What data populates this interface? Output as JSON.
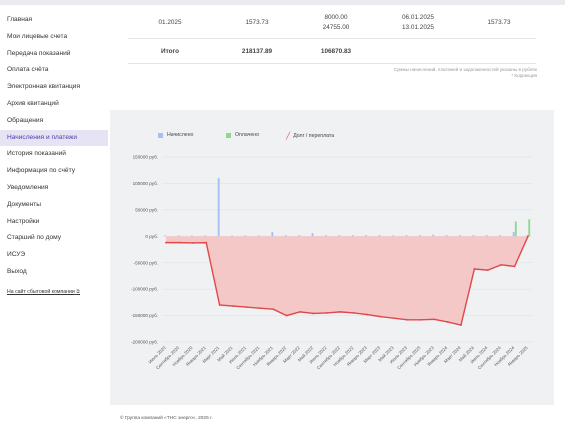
{
  "sidebar": {
    "items": [
      {
        "label": "Главная"
      },
      {
        "label": "Мои лицевые счета"
      },
      {
        "label": "Передача показаний"
      },
      {
        "label": "Оплата счёта"
      },
      {
        "label": "Электронная квитанция"
      },
      {
        "label": "Архив квитанций"
      },
      {
        "label": "Обращения"
      },
      {
        "label": "Начисления и платежи",
        "active": true
      },
      {
        "label": "История показаний"
      },
      {
        "label": "Информация по счёту"
      },
      {
        "label": "Уведомления"
      },
      {
        "label": "Документы"
      },
      {
        "label": "Настройки"
      },
      {
        "label": "Старший по дому"
      },
      {
        "label": "ИСУЭ"
      },
      {
        "label": "Выход"
      }
    ],
    "company_link": "На сайт сбытовой компании"
  },
  "table": {
    "row": {
      "period": "01.2025",
      "accrued": "1573.73",
      "paid_1": "8000.00",
      "paid_2": "24755.00",
      "date_1": "06.01.2025",
      "date_2": "13.01.2025",
      "amount": "1573.73"
    },
    "total": {
      "label": "Итого",
      "accrued": "218137.89",
      "paid": "106870.83"
    }
  },
  "notes": {
    "line1": "Суммы начислений, платежей и задолженностей указаны в рублях",
    "line2": "* Коррекция"
  },
  "chart_data": {
    "type": "bar",
    "legend": [
      "Начислено",
      "Оплачено",
      "Долг / переплата"
    ],
    "colors": {
      "accrued": "#a9bff3",
      "paid": "#8fd88f",
      "debt_line": "#e0484c",
      "debt_fill": "#f3c8c6"
    },
    "y_ticks": [
      "150000 руб.",
      "100000 руб.",
      "50000 руб.",
      "0 руб.",
      "-50000 руб.",
      "-100000 руб.",
      "-150000 руб.",
      "-200000 руб."
    ],
    "ylim": [
      -200000,
      150000
    ],
    "categories": [
      "Июль 2020",
      "Сентябрь 2020",
      "Ноябрь 2020",
      "Январь 2021",
      "Март 2021",
      "Май 2021",
      "Июль 2021",
      "Сентябрь 2021",
      "Ноябрь 2021",
      "Январь 2022",
      "Март 2022",
      "Май 2022",
      "Июль 2022",
      "Сентябрь 2022",
      "Ноябрь 2022",
      "Январь 2023",
      "Март 2023",
      "Май 2023",
      "Июль 2023",
      "Сентябрь 2023",
      "Ноябрь 2023",
      "Январь 2024",
      "Март 2024",
      "Май 2024",
      "Июль 2024",
      "Сентябрь 2024",
      "Ноябрь 2024",
      "Январь 2025"
    ],
    "accrued": [
      1500,
      1500,
      1500,
      1500,
      110000,
      1500,
      1500,
      1500,
      8000,
      2000,
      2000,
      6000,
      2000,
      2000,
      2000,
      2000,
      2000,
      1500,
      2000,
      2000,
      3000,
      2000,
      2000,
      2000,
      2000,
      2000,
      8000,
      1600
    ],
    "paid": [
      0,
      0,
      0,
      0,
      0,
      0,
      0,
      0,
      0,
      0,
      0,
      0,
      0,
      0,
      0,
      0,
      0,
      0,
      0,
      0,
      0,
      0,
      0,
      0,
      0,
      0,
      28000,
      32000
    ],
    "debt": [
      -12000,
      -12000,
      -12500,
      -12000,
      -130000,
      -132000,
      -134000,
      -136000,
      -138000,
      -150000,
      -143000,
      -146000,
      -145000,
      -143000,
      -145000,
      -148000,
      -152000,
      -155000,
      -158000,
      -158000,
      -157000,
      -162000,
      -168000,
      -62000,
      -64000,
      -54000,
      -57000,
      0
    ]
  },
  "footer": "© Группа компаний «ТНС энерго», 2025 г."
}
